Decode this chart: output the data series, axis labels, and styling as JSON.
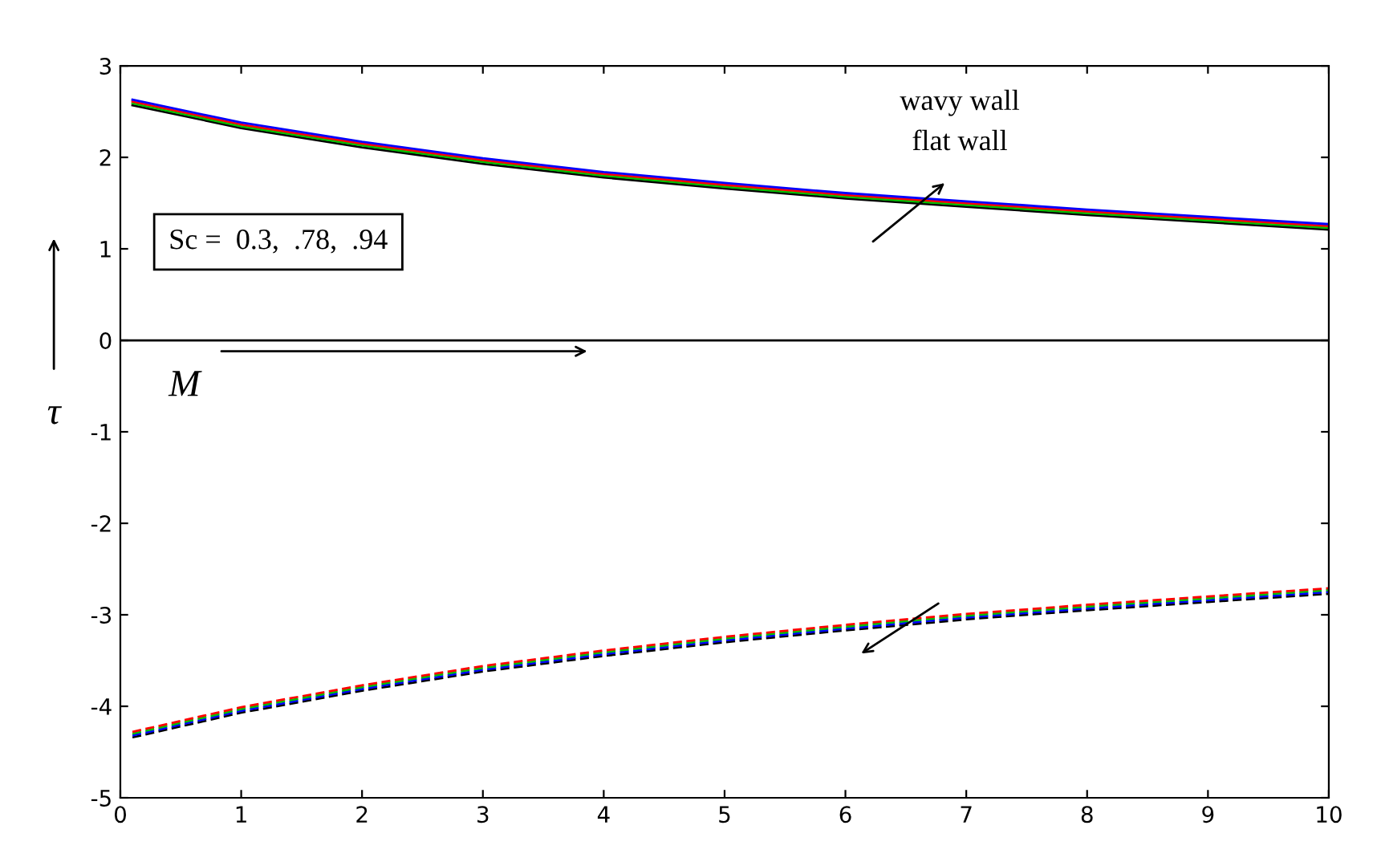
{
  "chart_data": {
    "type": "line",
    "xlabel": "M",
    "ylabel": "τ",
    "x": [
      0.1,
      1,
      2,
      3,
      4,
      5,
      6,
      7,
      8,
      9,
      10
    ],
    "series": [
      {
        "color": "#000000",
        "line_style": "solid",
        "values": [
          2.57,
          2.32,
          2.11,
          1.93,
          1.78,
          1.66,
          1.55,
          1.46,
          1.37,
          1.29,
          1.21
        ]
      },
      {
        "color": "#00c000",
        "line_style": "solid",
        "values": [
          2.59,
          2.34,
          2.13,
          1.95,
          1.8,
          1.68,
          1.57,
          1.48,
          1.39,
          1.31,
          1.23
        ]
      },
      {
        "color": "#ff0000",
        "line_style": "solid",
        "values": [
          2.61,
          2.36,
          2.15,
          1.97,
          1.82,
          1.7,
          1.59,
          1.5,
          1.41,
          1.33,
          1.25
        ]
      },
      {
        "color": "#0000ff",
        "line_style": "solid",
        "values": [
          2.63,
          2.38,
          2.17,
          1.99,
          1.84,
          1.72,
          1.61,
          1.52,
          1.43,
          1.35,
          1.27
        ]
      },
      {
        "color": "#000000",
        "line_style": "dashed",
        "values": [
          -4.34,
          -4.07,
          -3.83,
          -3.62,
          -3.45,
          -3.3,
          -3.17,
          -3.05,
          -2.95,
          -2.86,
          -2.77
        ]
      },
      {
        "color": "#0000ff",
        "line_style": "dashed",
        "values": [
          -4.32,
          -4.05,
          -3.81,
          -3.6,
          -3.43,
          -3.28,
          -3.15,
          -3.03,
          -2.93,
          -2.84,
          -2.75
        ]
      },
      {
        "color": "#00c000",
        "line_style": "dashed",
        "values": [
          -4.3,
          -4.03,
          -3.79,
          -3.58,
          -3.41,
          -3.26,
          -3.13,
          -3.01,
          -2.91,
          -2.82,
          -2.73
        ]
      },
      {
        "color": "#ff0000",
        "line_style": "dashed",
        "values": [
          -4.28,
          -4.01,
          -3.77,
          -3.56,
          -3.39,
          -3.24,
          -3.11,
          -2.99,
          -2.89,
          -2.8,
          -2.71
        ]
      }
    ],
    "xlim": [
      0,
      10
    ],
    "ylim": [
      -5,
      3
    ],
    "xticks": [
      0,
      1,
      2,
      3,
      4,
      5,
      6,
      7,
      8,
      9,
      10
    ],
    "yticks": [
      -5,
      -4,
      -3,
      -2,
      -1,
      0,
      1,
      2,
      3
    ],
    "ref_lines": [
      {
        "axis": "y",
        "value": 0,
        "color": "#000000"
      }
    ],
    "annotations": [
      "wavy wall",
      "flat wall",
      "Sc =  0.3,  .78,  .94"
    ],
    "grid": false,
    "legend": false,
    "marker": "none"
  }
}
